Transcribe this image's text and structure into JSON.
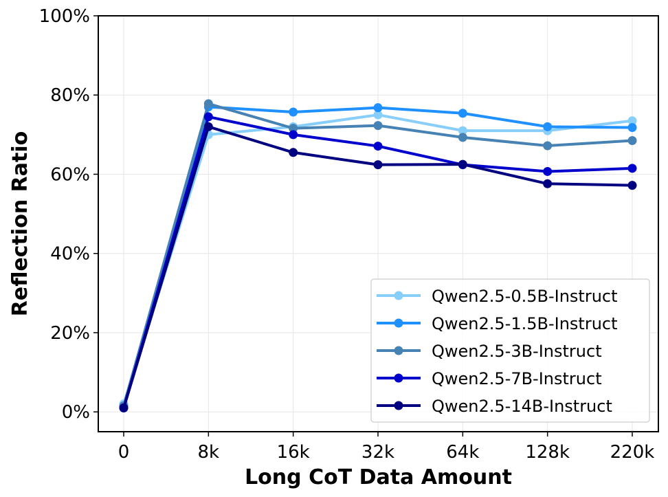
{
  "chart_data": {
    "type": "line",
    "title": "",
    "xlabel": "Long CoT Data Amount",
    "ylabel": "Reflection Ratio",
    "categories": [
      "0",
      "8k",
      "16k",
      "32k",
      "64k",
      "128k",
      "220k"
    ],
    "yticks": [
      "0%",
      "20%",
      "40%",
      "60%",
      "80%",
      "100%"
    ],
    "ylim": [
      -0.05,
      1.0
    ],
    "ytick_values": [
      0,
      0.2,
      0.4,
      0.6,
      0.8,
      1.0
    ],
    "grid": true,
    "legend_position": "lower-right",
    "series": [
      {
        "name": "Qwen2.5-0.5B-Instruct",
        "color": "#87CEFA",
        "values": [
          0.02,
          0.7,
          0.72,
          0.75,
          0.71,
          0.71,
          0.735
        ]
      },
      {
        "name": "Qwen2.5-1.5B-Instruct",
        "color": "#1E90FF",
        "values": [
          0.015,
          0.77,
          0.757,
          0.768,
          0.754,
          0.72,
          0.718
        ]
      },
      {
        "name": "Qwen2.5-3B-Instruct",
        "color": "#4682B4",
        "values": [
          0.015,
          0.778,
          0.716,
          0.723,
          0.693,
          0.672,
          0.685
        ]
      },
      {
        "name": "Qwen2.5-7B-Instruct",
        "color": "#0000CD",
        "values": [
          0.01,
          0.745,
          0.7,
          0.671,
          0.624,
          0.607,
          0.615
        ]
      },
      {
        "name": "Qwen2.5-14B-Instruct",
        "color": "#000080",
        "values": [
          0.01,
          0.72,
          0.655,
          0.624,
          0.625,
          0.576,
          0.572
        ]
      }
    ]
  }
}
